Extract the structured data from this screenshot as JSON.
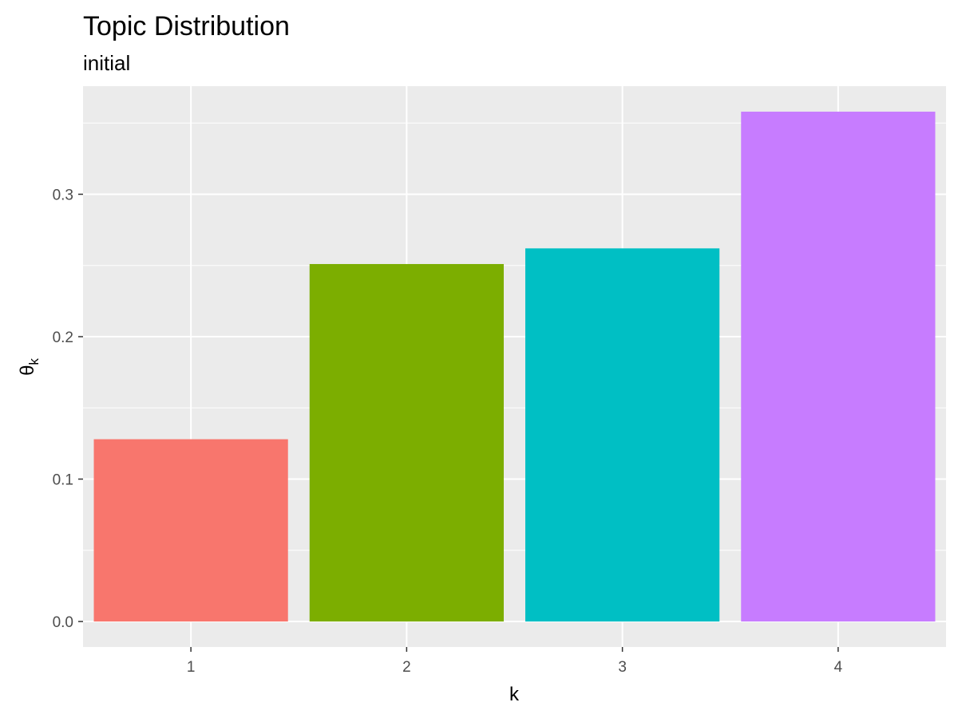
{
  "chart_data": {
    "type": "bar",
    "title": "Topic Distribution",
    "subtitle": "initial",
    "xlabel": "k",
    "ylabel_symbol": "θ",
    "ylabel_subscript": "k",
    "categories": [
      "1",
      "2",
      "3",
      "4"
    ],
    "values": [
      0.128,
      0.251,
      0.262,
      0.358
    ],
    "colors": [
      "#F8766D",
      "#7CAE00",
      "#00BFC4",
      "#C77CFF"
    ],
    "ylim": [
      -0.0179,
      0.3759
    ],
    "y_ticks": [
      0.0,
      0.1,
      0.2,
      0.3
    ],
    "y_tick_labels": [
      "0.0",
      "0.1",
      "0.2",
      "0.3"
    ],
    "y_minor_ticks": [
      0.05,
      0.15,
      0.25,
      0.35
    ],
    "grid": true,
    "legend": "none",
    "panel_background": "#EBEBEB",
    "gridline_color": "#FFFFFF"
  }
}
